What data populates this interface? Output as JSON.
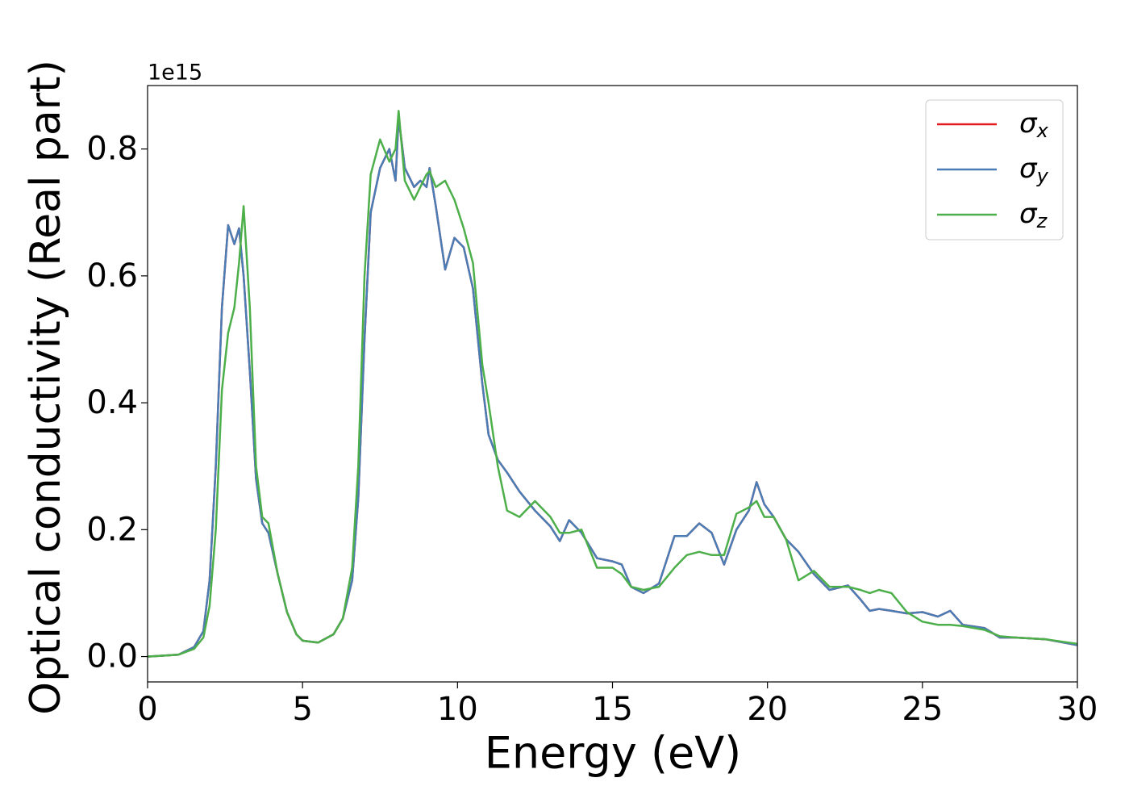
{
  "chart_data": {
    "type": "line",
    "xlabel": "Energy (eV)",
    "ylabel": "Optical conductivity (Real part)",
    "y_offset_label": "1e15",
    "x": [
      0,
      1,
      1.5,
      1.8,
      2.0,
      2.2,
      2.4,
      2.6,
      2.8,
      2.95,
      3.1,
      3.3,
      3.5,
      3.7,
      3.9,
      4.2,
      4.5,
      4.8,
      5.0,
      5.5,
      6.0,
      6.3,
      6.6,
      6.8,
      7.0,
      7.2,
      7.5,
      7.8,
      8.0,
      8.1,
      8.3,
      8.6,
      8.8,
      9.0,
      9.1,
      9.3,
      9.6,
      9.9,
      10.2,
      10.5,
      10.8,
      11.0,
      11.3,
      11.6,
      12.0,
      12.5,
      13.0,
      13.3,
      13.6,
      14.0,
      14.5,
      15.0,
      15.3,
      15.6,
      16.0,
      16.5,
      17.0,
      17.4,
      17.8,
      18.2,
      18.6,
      19.0,
      19.4,
      19.65,
      19.9,
      20.2,
      20.6,
      21.0,
      21.5,
      22.0,
      22.6,
      23.0,
      23.3,
      23.6,
      24.0,
      24.5,
      25.0,
      25.5,
      25.9,
      26.3,
      27.0,
      27.5,
      28.0,
      29.0,
      30.0
    ],
    "series": [
      {
        "name": "σx",
        "color": "#e41a1c",
        "values": [
          0,
          0.003,
          0.015,
          0.04,
          0.12,
          0.3,
          0.55,
          0.68,
          0.65,
          0.675,
          0.6,
          0.45,
          0.28,
          0.21,
          0.195,
          0.13,
          0.07,
          0.035,
          0.025,
          0.022,
          0.035,
          0.06,
          0.12,
          0.25,
          0.5,
          0.7,
          0.77,
          0.8,
          0.75,
          0.85,
          0.77,
          0.74,
          0.75,
          0.74,
          0.77,
          0.71,
          0.61,
          0.66,
          0.645,
          0.58,
          0.43,
          0.35,
          0.31,
          0.29,
          0.26,
          0.23,
          0.205,
          0.182,
          0.215,
          0.195,
          0.155,
          0.15,
          0.145,
          0.11,
          0.1,
          0.115,
          0.19,
          0.19,
          0.21,
          0.195,
          0.145,
          0.2,
          0.23,
          0.275,
          0.24,
          0.22,
          0.185,
          0.165,
          0.13,
          0.105,
          0.112,
          0.09,
          0.072,
          0.075,
          0.072,
          0.068,
          0.07,
          0.063,
          0.072,
          0.05,
          0.045,
          0.03,
          0.03,
          0.027,
          0.018
        ]
      },
      {
        "name": "σy",
        "color": "#4a7db5",
        "values": [
          0,
          0.003,
          0.015,
          0.04,
          0.12,
          0.3,
          0.55,
          0.68,
          0.65,
          0.675,
          0.6,
          0.45,
          0.28,
          0.21,
          0.195,
          0.13,
          0.07,
          0.035,
          0.025,
          0.022,
          0.035,
          0.06,
          0.12,
          0.25,
          0.5,
          0.7,
          0.77,
          0.8,
          0.75,
          0.85,
          0.77,
          0.74,
          0.75,
          0.74,
          0.77,
          0.71,
          0.61,
          0.66,
          0.645,
          0.58,
          0.43,
          0.35,
          0.31,
          0.29,
          0.26,
          0.23,
          0.205,
          0.182,
          0.215,
          0.195,
          0.155,
          0.15,
          0.145,
          0.11,
          0.1,
          0.115,
          0.19,
          0.19,
          0.21,
          0.195,
          0.145,
          0.2,
          0.23,
          0.275,
          0.24,
          0.22,
          0.185,
          0.165,
          0.13,
          0.105,
          0.112,
          0.09,
          0.072,
          0.075,
          0.072,
          0.068,
          0.07,
          0.063,
          0.072,
          0.05,
          0.045,
          0.03,
          0.03,
          0.027,
          0.018
        ]
      },
      {
        "name": "σz",
        "color": "#4daf4a",
        "values": [
          0,
          0.003,
          0.012,
          0.03,
          0.08,
          0.2,
          0.42,
          0.51,
          0.55,
          0.62,
          0.71,
          0.55,
          0.3,
          0.22,
          0.21,
          0.13,
          0.07,
          0.035,
          0.025,
          0.022,
          0.035,
          0.06,
          0.14,
          0.3,
          0.6,
          0.76,
          0.815,
          0.78,
          0.8,
          0.86,
          0.75,
          0.72,
          0.74,
          0.76,
          0.765,
          0.74,
          0.75,
          0.72,
          0.675,
          0.62,
          0.46,
          0.4,
          0.3,
          0.23,
          0.22,
          0.245,
          0.22,
          0.195,
          0.195,
          0.2,
          0.14,
          0.14,
          0.13,
          0.11,
          0.105,
          0.11,
          0.14,
          0.16,
          0.165,
          0.16,
          0.16,
          0.225,
          0.235,
          0.245,
          0.22,
          0.22,
          0.185,
          0.12,
          0.135,
          0.11,
          0.11,
          0.105,
          0.1,
          0.105,
          0.1,
          0.07,
          0.055,
          0.05,
          0.05,
          0.048,
          0.042,
          0.032,
          0.03,
          0.027,
          0.02
        ]
      }
    ],
    "xlim": [
      0,
      30
    ],
    "xticks": [
      0,
      5,
      10,
      15,
      20,
      25,
      30
    ],
    "ylim": [
      -0.04,
      0.9
    ],
    "yticks": [
      {
        "value": 0,
        "label": "0.0"
      },
      0.2,
      0.4,
      0.6,
      0.8
    ],
    "legend": "upper right"
  }
}
